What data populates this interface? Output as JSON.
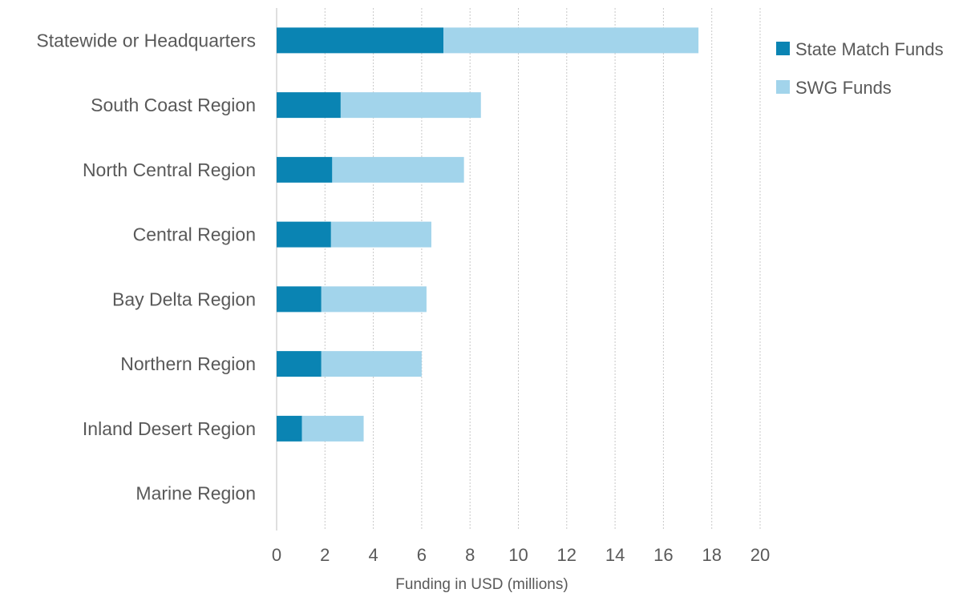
{
  "chart_data": {
    "type": "bar",
    "orientation": "horizontal",
    "stacked": true,
    "categories": [
      "Statewide or Headquarters",
      "South Coast Region",
      "North Central Region",
      "Central Region",
      "Bay Delta Region",
      "Northern Region",
      "Inland Desert Region",
      "Marine Region"
    ],
    "series": [
      {
        "name": "State Match Funds",
        "color": "#0a84b3",
        "values": [
          6.9,
          2.65,
          2.3,
          2.25,
          1.85,
          1.85,
          1.05,
          0
        ]
      },
      {
        "name": "SWG Funds",
        "color": "#a2d4eb",
        "values": [
          10.55,
          5.8,
          5.45,
          4.15,
          4.35,
          4.15,
          2.55,
          0
        ]
      }
    ],
    "x_ticks": [
      "0",
      "2",
      "4",
      "6",
      "8",
      "10",
      "12",
      "14",
      "16",
      "18",
      "20"
    ],
    "xlim": [
      0,
      20
    ],
    "xlabel": "Funding in USD (millions)",
    "ylabel": "",
    "title": "",
    "grid": "vertical",
    "legend_position": "top-right"
  }
}
